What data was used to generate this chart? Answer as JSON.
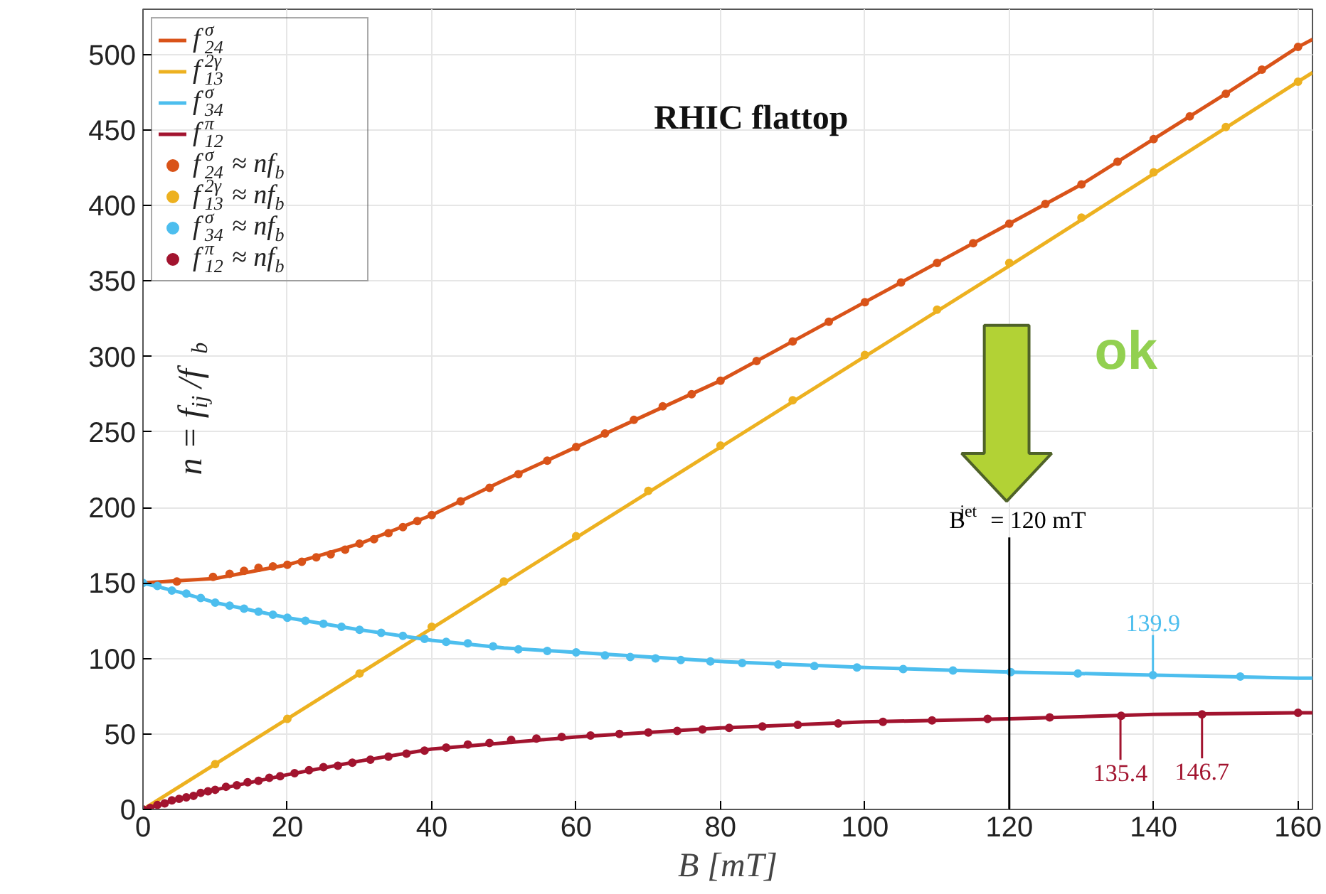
{
  "chart_data": {
    "type": "line",
    "title": "RHIC flattop",
    "xlabel": "B [mT]",
    "ylabel": "n = f$_{ij}$/f$_{b}$",
    "xlim": [
      0,
      162
    ],
    "ylim": [
      0,
      530
    ],
    "xticks": [
      0,
      20,
      40,
      60,
      80,
      100,
      120,
      140,
      160
    ],
    "yticks": [
      0,
      50,
      100,
      150,
      200,
      250,
      300,
      350,
      400,
      450,
      500
    ],
    "grid": true,
    "legend": "top left",
    "marker": "none",
    "line_style": "solid",
    "series": [
      {
        "name": "f$^{σ}$$_{24}$",
        "color": "#d95319",
        "x": [
          0,
          10,
          20,
          30,
          40,
          50,
          60,
          70,
          80,
          90,
          100,
          110,
          120,
          130,
          140,
          150,
          160,
          162
        ],
        "values": [
          150,
          153,
          162,
          176,
          195,
          218,
          240,
          262,
          284,
          310,
          336,
          362,
          388,
          414,
          444,
          474,
          505,
          510
        ]
      },
      {
        "name": "f$^{2γ}$$_{13}$",
        "color": "#edb120",
        "x": [
          0,
          40,
          80,
          120,
          160,
          162
        ],
        "values": [
          0,
          120,
          240,
          360,
          482,
          488
        ]
      },
      {
        "name": "f$^{σ}$$_{34}$",
        "color": "#4dbeee",
        "x": [
          0,
          5,
          10,
          20,
          30,
          40,
          50,
          60,
          80,
          100,
          120,
          140,
          160,
          162
        ],
        "values": [
          150,
          144,
          137,
          127,
          119,
          112,
          107,
          104,
          98,
          94,
          91,
          89,
          87,
          87
        ]
      },
      {
        "name": "f$^{π}$$_{12}$",
        "color": "#a2142f",
        "x": [
          0,
          5,
          10,
          20,
          30,
          40,
          60,
          80,
          100,
          120,
          140,
          160,
          162
        ],
        "values": [
          0,
          7,
          13,
          23,
          32,
          40,
          48,
          54,
          58,
          60,
          63,
          64,
          64
        ]
      },
      {
        "type": "scatter",
        "marker": "circle",
        "name": "f$^{σ}$$_{24}$ ≈ nf$_{b}$",
        "color": "#d95319",
        "x": [
          4.7,
          9.7,
          12,
          14,
          16,
          18,
          20,
          22,
          24,
          26,
          28,
          30,
          32,
          34,
          36,
          38,
          40,
          44,
          48,
          52,
          56,
          60,
          64,
          68,
          72,
          76,
          80,
          85,
          90,
          95,
          100,
          105,
          110,
          115,
          120,
          125,
          130,
          135,
          140,
          145,
          150,
          155,
          160
        ],
        "values": [
          151,
          154,
          156,
          158,
          160,
          161,
          162,
          164,
          167,
          169,
          172,
          176,
          179,
          183,
          187,
          191,
          195,
          204,
          213,
          222,
          231,
          240,
          249,
          258,
          267,
          275,
          284,
          297,
          310,
          323,
          336,
          349,
          362,
          375,
          388,
          401,
          414,
          429,
          444,
          459,
          474,
          490,
          505
        ]
      },
      {
        "type": "scatter",
        "marker": "circle",
        "name": "f$^{2γ}$$_{13}$ ≈ nf$_{b}$",
        "color": "#edb120",
        "x": [
          10,
          20,
          30,
          40,
          50,
          60,
          70,
          80,
          90,
          100,
          110,
          120,
          130,
          140,
          150,
          160
        ],
        "values": [
          30,
          60,
          90,
          121,
          151,
          181,
          211,
          241,
          271,
          301,
          331,
          362,
          392,
          422,
          452,
          482
        ]
      },
      {
        "type": "scatter",
        "marker": "circle",
        "name": "f$^{σ}$$_{34}$ ≈ nf$_{b}$",
        "color": "#4dbeee",
        "x": [
          0,
          2,
          4,
          6,
          8,
          10,
          12,
          14,
          16,
          18,
          20,
          22.5,
          25,
          27.5,
          30,
          33,
          36,
          39,
          42,
          45,
          48.5,
          52,
          56,
          60,
          64,
          67.5,
          71,
          74.5,
          78.6,
          83,
          88,
          93,
          98.9,
          105.3,
          112.2,
          120.2,
          129.5,
          139.9,
          152
        ],
        "values": [
          150,
          148,
          145,
          143,
          140,
          137,
          135,
          133,
          131,
          129,
          127,
          125,
          123,
          121,
          119,
          117,
          115,
          113,
          111,
          110,
          108,
          106,
          105,
          104,
          102,
          101,
          100,
          99,
          98,
          97,
          96,
          95,
          94,
          93,
          92,
          91,
          90,
          89,
          88
        ]
      },
      {
        "type": "scatter",
        "marker": "circle",
        "name": "f$^{π}$$_{12}$ ≈ nf$_{b}$",
        "color": "#a2142f",
        "x": [
          0,
          1,
          2,
          3,
          4,
          5,
          6,
          7,
          8,
          9,
          10,
          11.5,
          13,
          14.5,
          16,
          17.5,
          19,
          21,
          23,
          25,
          27,
          29,
          31.5,
          34,
          36.5,
          39,
          42,
          45,
          48,
          51,
          54.5,
          58,
          62,
          66,
          70,
          74,
          77.5,
          81.2,
          85.8,
          90.7,
          96.3,
          102.5,
          109.3,
          117,
          125.6,
          135.5,
          146.7,
          160
        ],
        "values": [
          0,
          1,
          3,
          4,
          6,
          7,
          8,
          9,
          11,
          12,
          13,
          15,
          16,
          18,
          19,
          21,
          22,
          24,
          26,
          28,
          29,
          31,
          33,
          35,
          37,
          39,
          41,
          43,
          44,
          46,
          47,
          48,
          49,
          50,
          51,
          52,
          53,
          54,
          55,
          56,
          57,
          58,
          59,
          60,
          61,
          62,
          63,
          64
        ]
      }
    ],
    "ref_lines": [
      {
        "axis": "x",
        "value": 120,
        "label": "B$^{jet}$ = 120 mT",
        "color": "#000000"
      }
    ],
    "annotations": [
      {
        "text": "139.9",
        "x": 139.9,
        "y": 89
      },
      {
        "text": "135.4",
        "x": 135.4,
        "y": 62
      },
      {
        "text": "146.7",
        "x": 146.7,
        "y": 63
      },
      "ok"
    ]
  }
}
